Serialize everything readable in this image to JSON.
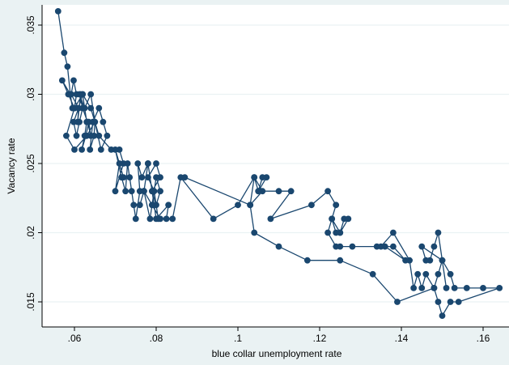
{
  "chart_data": {
    "type": "scatter",
    "connected": true,
    "title": "",
    "xlabel": "blue collar unemployment rate",
    "ylabel": "Vacancy rate",
    "xlim": [
      0.053,
      0.165
    ],
    "ylim": [
      0.0135,
      0.0365
    ],
    "xticks": [
      0.06,
      0.08,
      0.1,
      0.12,
      0.14,
      0.16
    ],
    "xtick_labels": [
      ".06",
      ".08",
      ".1",
      ".12",
      ".14",
      ".16"
    ],
    "yticks": [
      0.015,
      0.02,
      0.025,
      0.03,
      0.035
    ],
    "ytick_labels": [
      ".015",
      ".02",
      ".025",
      ".03",
      ".035"
    ],
    "grid": "horizontal",
    "legend": "none",
    "colors": {
      "marker": "#1a476f",
      "line": "#1a476f",
      "plot_bg": "#ffffff",
      "outer_bg": "#eaf2f3",
      "grid": "#eaf2f3"
    },
    "x": [
      0.056,
      0.0575,
      0.0583,
      0.059,
      0.0595,
      0.059,
      0.057,
      0.0585,
      0.06,
      0.0605,
      0.0598,
      0.0592,
      0.061,
      0.0608,
      0.0615,
      0.062,
      0.0612,
      0.0605,
      0.0598,
      0.061,
      0.062,
      0.063,
      0.0625,
      0.0618,
      0.0628,
      0.0635,
      0.064,
      0.0632,
      0.062,
      0.0612,
      0.0625,
      0.064,
      0.065,
      0.0648,
      0.0638,
      0.0645,
      0.066,
      0.067,
      0.068,
      0.0665,
      0.065,
      0.063,
      0.06,
      0.058,
      0.06,
      0.062,
      0.064,
      0.066,
      0.069,
      0.071,
      0.072,
      0.07,
      0.071,
      0.072,
      0.07,
      0.0715,
      0.0725,
      0.073,
      0.074,
      0.0735,
      0.0745,
      0.075,
      0.076,
      0.0755,
      0.0765,
      0.078,
      0.077,
      0.0785,
      0.079,
      0.08,
      0.081,
      0.08,
      0.079,
      0.078,
      0.077,
      0.076,
      0.077,
      0.079,
      0.081,
      0.0825,
      0.083,
      0.08,
      0.079,
      0.081,
      0.08,
      0.078,
      0.0795,
      0.0805,
      0.084,
      0.086,
      0.094,
      0.1,
      0.104,
      0.106,
      0.103,
      0.104,
      0.105,
      0.106,
      0.107,
      0.105,
      0.11,
      0.113,
      0.108,
      0.118,
      0.122,
      0.124,
      0.123,
      0.125,
      0.126,
      0.127,
      0.125,
      0.124,
      0.123,
      0.122,
      0.124,
      0.125,
      0.128,
      0.134,
      0.138,
      0.141,
      0.136,
      0.135,
      0.138,
      0.142,
      0.143,
      0.144,
      0.145,
      0.146,
      0.148,
      0.149,
      0.15,
      0.151,
      0.149,
      0.148,
      0.147,
      0.146,
      0.145,
      0.15,
      0.152,
      0.153,
      0.156,
      0.16,
      0.164,
      0.154,
      0.152,
      0.15,
      0.149,
      0.148,
      0.139,
      0.133,
      0.125,
      0.117,
      0.11,
      0.104,
      0.103,
      0.087
    ],
    "y": [
      0.036,
      0.033,
      0.032,
      0.03,
      0.029,
      0.03,
      0.031,
      0.03,
      0.029,
      0.03,
      0.031,
      0.03,
      0.029,
      0.028,
      0.03,
      0.029,
      0.028,
      0.027,
      0.028,
      0.029,
      0.03,
      0.028,
      0.027,
      0.026,
      0.027,
      0.028,
      0.027,
      0.028,
      0.029,
      0.03,
      0.029,
      0.03,
      0.028,
      0.027,
      0.026,
      0.028,
      0.029,
      0.028,
      0.027,
      0.026,
      0.028,
      0.027,
      0.026,
      0.027,
      0.029,
      0.03,
      0.029,
      0.027,
      0.026,
      0.026,
      0.025,
      0.023,
      0.025,
      0.024,
      0.026,
      0.024,
      0.023,
      0.025,
      0.023,
      0.024,
      0.022,
      0.021,
      0.023,
      0.025,
      0.024,
      0.025,
      0.023,
      0.021,
      0.022,
      0.024,
      0.023,
      0.022,
      0.023,
      0.025,
      0.023,
      0.022,
      0.023,
      0.022,
      0.021,
      0.021,
      0.022,
      0.021,
      0.023,
      0.024,
      0.025,
      0.024,
      0.023,
      0.021,
      0.021,
      0.024,
      0.021,
      0.022,
      0.024,
      0.023,
      0.022,
      0.024,
      0.023,
      0.024,
      0.024,
      0.023,
      0.023,
      0.023,
      0.021,
      0.022,
      0.023,
      0.022,
      0.021,
      0.02,
      0.021,
      0.021,
      0.02,
      0.02,
      0.021,
      0.02,
      0.019,
      0.019,
      0.019,
      0.019,
      0.019,
      0.018,
      0.019,
      0.019,
      0.02,
      0.018,
      0.016,
      0.017,
      0.016,
      0.017,
      0.016,
      0.017,
      0.018,
      0.016,
      0.02,
      0.019,
      0.018,
      0.018,
      0.019,
      0.018,
      0.017,
      0.016,
      0.016,
      0.016,
      0.016,
      0.015,
      0.015,
      0.014,
      0.015,
      0.016,
      0.015,
      0.017,
      0.018,
      0.018,
      0.019,
      0.02,
      0.022,
      0.024
    ]
  }
}
